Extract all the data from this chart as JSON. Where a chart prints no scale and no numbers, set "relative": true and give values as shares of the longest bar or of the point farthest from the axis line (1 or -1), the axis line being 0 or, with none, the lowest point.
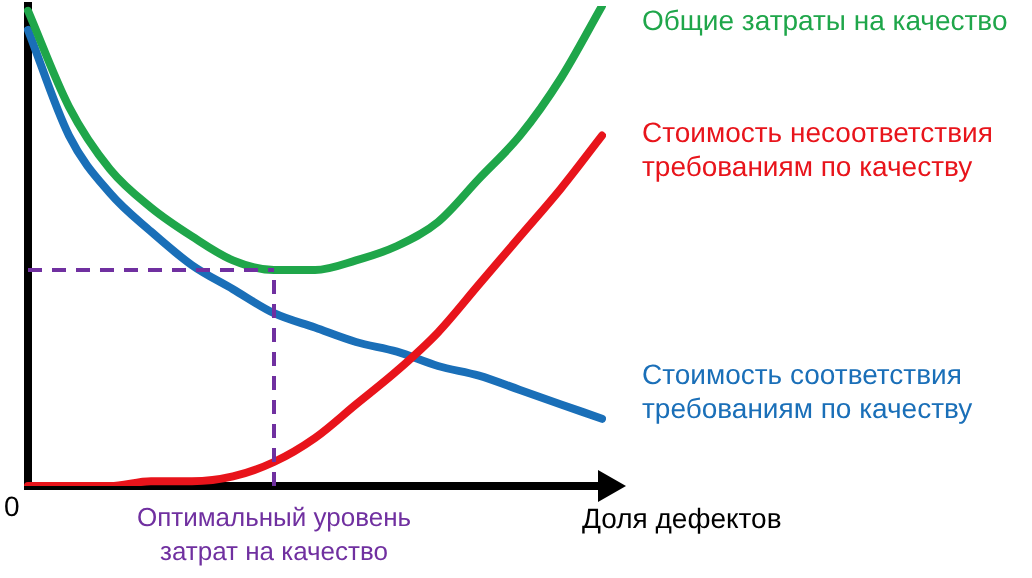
{
  "chart_data": {
    "type": "line",
    "relative": true,
    "xlabel": "Доля дефектов",
    "categories": [
      null,
      null,
      null,
      null,
      null,
      null,
      null,
      null,
      null,
      null,
      null,
      null,
      null,
      null,
      null
    ],
    "series": [
      {
        "name": "Общие затраты на качество",
        "color": "#1fa64a",
        "values": [
          0.99,
          0.79,
          0.66,
          0.58,
          0.52,
          0.47,
          0.45,
          0.45,
          0.47,
          0.5,
          0.55,
          0.64,
          0.73,
          0.85,
          1
        ]
      },
      {
        "name": "Стоимость несоответствия требованиям по качеству",
        "color": "#e8141b",
        "values": [
          0,
          0,
          0,
          0.01,
          0.01,
          0.02,
          0.05,
          0.1,
          0.17,
          0.24,
          0.32,
          0.42,
          0.52,
          0.62,
          0.73
        ]
      },
      {
        "name": "Стоимость соответствия требованиям по качеству",
        "color": "#1a6fb8",
        "values": [
          0.95,
          0.73,
          0.61,
          0.53,
          0.46,
          0.41,
          0.36,
          0.33,
          0.3,
          0.28,
          0.25,
          0.23,
          0.2,
          0.17,
          0.14
        ]
      }
    ],
    "ref_lines": [
      {
        "axis": "y",
        "value": 0.45,
        "color": "#7030a0",
        "line_style": "dashed"
      }
    ],
    "annotations": [
      "0",
      "Оптимальный уровень затрат на качество"
    ],
    "grid": false,
    "legend": false,
    "marker": "none",
    "line_style": "solid"
  }
}
